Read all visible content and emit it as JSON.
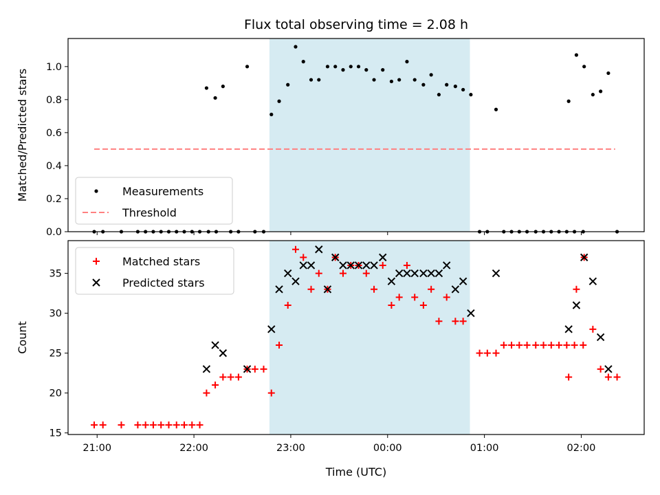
{
  "chart_data": {
    "type": "scatter",
    "title": "Flux total observing time = 2.08 h",
    "xlabel": "Time (UTC)",
    "x_tick_labels": [
      "21:00",
      "22:00",
      "23:00",
      "00:00",
      "01:00",
      "02:00"
    ],
    "x_tick_hours": [
      0,
      1,
      2,
      3,
      4,
      5
    ],
    "x_axis_origin": "21:00",
    "x_unit": "hours after 21:00 UTC",
    "xlim": [
      -0.3,
      5.65
    ],
    "highlight_span": [
      1.78,
      3.85
    ],
    "colors": {
      "measurements": "#000000",
      "threshold": "#ff8080",
      "matched": "#ff0000",
      "predicted": "#000000",
      "highlight": "#add8e6"
    },
    "panels": [
      {
        "id": "ratio",
        "ylabel": "Matched/Predicted stars",
        "ylim": [
          0,
          1.17
        ],
        "y_ticks": [
          "0.0",
          "0.2",
          "0.4",
          "0.6",
          "0.8",
          "1.0"
        ],
        "legend_position": "lower-left",
        "series": [
          {
            "name": "Measurements",
            "marker": "dot",
            "points": [
              [
                -0.03,
                0
              ],
              [
                0.06,
                0
              ],
              [
                0.25,
                0
              ],
              [
                0.42,
                0
              ],
              [
                0.5,
                0
              ],
              [
                0.58,
                0
              ],
              [
                0.66,
                0
              ],
              [
                0.74,
                0
              ],
              [
                0.82,
                0
              ],
              [
                0.9,
                0
              ],
              [
                0.98,
                0
              ],
              [
                1.06,
                0
              ],
              [
                1.15,
                0
              ],
              [
                1.23,
                0
              ],
              [
                1.13,
                0.87
              ],
              [
                1.22,
                0.81
              ],
              [
                1.3,
                0.88
              ],
              [
                1.38,
                0
              ],
              [
                1.46,
                0
              ],
              [
                1.55,
                1.0
              ],
              [
                1.63,
                0
              ],
              [
                1.72,
                0
              ],
              [
                1.8,
                0.71
              ],
              [
                1.88,
                0.79
              ],
              [
                1.97,
                0.89
              ],
              [
                2.05,
                1.12
              ],
              [
                2.13,
                1.03
              ],
              [
                2.21,
                0.92
              ],
              [
                2.29,
                0.92
              ],
              [
                2.38,
                1.0
              ],
              [
                2.46,
                1.0
              ],
              [
                2.54,
                0.98
              ],
              [
                2.62,
                1.0
              ],
              [
                2.7,
                1.0
              ],
              [
                2.78,
                0.98
              ],
              [
                2.86,
                0.92
              ],
              [
                2.95,
                0.98
              ],
              [
                3.04,
                0.91
              ],
              [
                3.12,
                0.92
              ],
              [
                3.2,
                1.03
              ],
              [
                3.28,
                0.92
              ],
              [
                3.37,
                0.89
              ],
              [
                3.45,
                0.95
              ],
              [
                3.53,
                0.83
              ],
              [
                3.61,
                0.89
              ],
              [
                3.7,
                0.88
              ],
              [
                3.78,
                0.86
              ],
              [
                3.86,
                0.83
              ],
              [
                3.95,
                0
              ],
              [
                4.03,
                0
              ],
              [
                4.12,
                0.74
              ],
              [
                4.2,
                0
              ],
              [
                4.28,
                0
              ],
              [
                4.36,
                0
              ],
              [
                4.44,
                0
              ],
              [
                4.53,
                0
              ],
              [
                4.61,
                0
              ],
              [
                4.69,
                0
              ],
              [
                4.77,
                0
              ],
              [
                4.85,
                0
              ],
              [
                4.93,
                0
              ],
              [
                5.02,
                0
              ],
              [
                4.87,
                0.79
              ],
              [
                4.95,
                1.07
              ],
              [
                5.03,
                1.0
              ],
              [
                5.12,
                0.83
              ],
              [
                5.2,
                0.85
              ],
              [
                5.28,
                0.96
              ],
              [
                5.37,
                0
              ]
            ]
          },
          {
            "name": "Threshold",
            "marker": "dashed-line",
            "points": [
              [
                -0.03,
                0.5
              ],
              [
                5.35,
                0.5
              ]
            ]
          }
        ]
      },
      {
        "id": "count",
        "ylabel": "Count",
        "ylim": [
          14.8,
          39.1
        ],
        "y_ticks": [
          "15",
          "20",
          "25",
          "30",
          "35"
        ],
        "legend_position": "upper-left",
        "series": [
          {
            "name": "Matched stars",
            "marker": "plus",
            "points": [
              [
                -0.03,
                16
              ],
              [
                0.06,
                16
              ],
              [
                0.25,
                16
              ],
              [
                0.42,
                16
              ],
              [
                0.5,
                16
              ],
              [
                0.58,
                16
              ],
              [
                0.66,
                16
              ],
              [
                0.74,
                16
              ],
              [
                0.82,
                16
              ],
              [
                0.9,
                16
              ],
              [
                0.98,
                16
              ],
              [
                1.06,
                16
              ],
              [
                1.13,
                20
              ],
              [
                1.22,
                21
              ],
              [
                1.3,
                22
              ],
              [
                1.38,
                22
              ],
              [
                1.46,
                22
              ],
              [
                1.55,
                23
              ],
              [
                1.63,
                23
              ],
              [
                1.72,
                23
              ],
              [
                1.8,
                20
              ],
              [
                1.88,
                26
              ],
              [
                1.97,
                31
              ],
              [
                2.05,
                38
              ],
              [
                2.13,
                37
              ],
              [
                2.21,
                33
              ],
              [
                2.29,
                35
              ],
              [
                2.38,
                33
              ],
              [
                2.46,
                37
              ],
              [
                2.54,
                35
              ],
              [
                2.62,
                36
              ],
              [
                2.7,
                36
              ],
              [
                2.78,
                35
              ],
              [
                2.86,
                33
              ],
              [
                2.95,
                36
              ],
              [
                3.04,
                31
              ],
              [
                3.12,
                32
              ],
              [
                3.2,
                36
              ],
              [
                3.28,
                32
              ],
              [
                3.37,
                31
              ],
              [
                3.45,
                33
              ],
              [
                3.53,
                29
              ],
              [
                3.61,
                32
              ],
              [
                3.7,
                29
              ],
              [
                3.78,
                29
              ],
              [
                3.95,
                25
              ],
              [
                4.03,
                25
              ],
              [
                4.12,
                25
              ],
              [
                4.2,
                26
              ],
              [
                4.28,
                26
              ],
              [
                4.36,
                26
              ],
              [
                4.44,
                26
              ],
              [
                4.53,
                26
              ],
              [
                4.61,
                26
              ],
              [
                4.69,
                26
              ],
              [
                4.77,
                26
              ],
              [
                4.85,
                26
              ],
              [
                4.93,
                26
              ],
              [
                5.02,
                26
              ],
              [
                4.87,
                22
              ],
              [
                4.95,
                33
              ],
              [
                5.03,
                37
              ],
              [
                5.12,
                28
              ],
              [
                5.2,
                23
              ],
              [
                5.28,
                22
              ],
              [
                5.37,
                22
              ]
            ]
          },
          {
            "name": "Predicted stars",
            "marker": "x",
            "points": [
              [
                1.13,
                23
              ],
              [
                1.22,
                26
              ],
              [
                1.3,
                25
              ],
              [
                1.55,
                23
              ],
              [
                1.8,
                28
              ],
              [
                1.88,
                33
              ],
              [
                1.97,
                35
              ],
              [
                2.05,
                34
              ],
              [
                2.13,
                36
              ],
              [
                2.21,
                36
              ],
              [
                2.29,
                38
              ],
              [
                2.38,
                33
              ],
              [
                2.46,
                37
              ],
              [
                2.54,
                36
              ],
              [
                2.62,
                36
              ],
              [
                2.7,
                36
              ],
              [
                2.78,
                36
              ],
              [
                2.86,
                36
              ],
              [
                2.95,
                37
              ],
              [
                3.04,
                34
              ],
              [
                3.12,
                35
              ],
              [
                3.2,
                35
              ],
              [
                3.28,
                35
              ],
              [
                3.37,
                35
              ],
              [
                3.45,
                35
              ],
              [
                3.53,
                35
              ],
              [
                3.61,
                36
              ],
              [
                3.7,
                33
              ],
              [
                3.78,
                34
              ],
              [
                3.86,
                30
              ],
              [
                4.12,
                35
              ],
              [
                4.87,
                28
              ],
              [
                4.95,
                31
              ],
              [
                5.03,
                37
              ],
              [
                5.12,
                34
              ],
              [
                5.2,
                27
              ],
              [
                5.28,
                23
              ]
            ]
          }
        ]
      }
    ]
  }
}
